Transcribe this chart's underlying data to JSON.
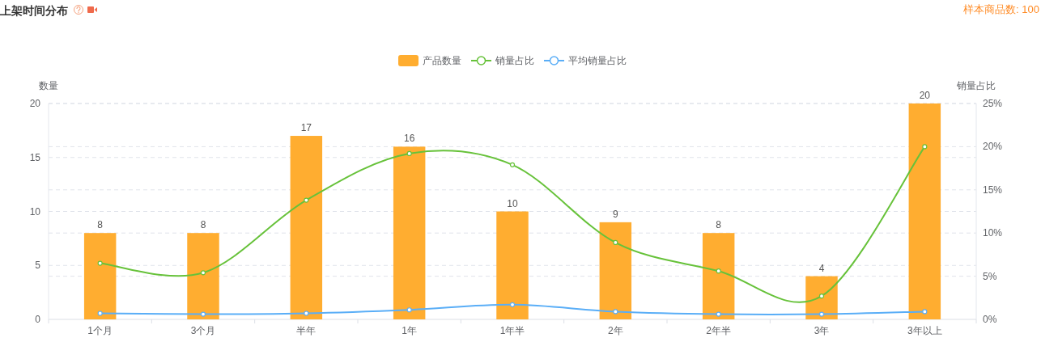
{
  "chart_data": {
    "type": "bar",
    "title": "上架时间分布",
    "annotations": [
      "样本商品数: 100"
    ],
    "ylabel": "数量",
    "y2label": "销量占比",
    "categories": [
      "1个月",
      "3个月",
      "半年",
      "1年",
      "1年半",
      "2年",
      "2年半",
      "3年",
      "3年以上"
    ],
    "series": [
      {
        "name": "产品数量",
        "color": "#ffad30",
        "values": [
          8,
          8,
          17,
          16,
          10,
          9,
          8,
          4,
          20
        ],
        "value_labels": [
          "8",
          "8",
          "17",
          "16",
          "10",
          "9",
          "8",
          "4",
          "20"
        ]
      },
      {
        "name": "销量占比",
        "type": "line",
        "axis": "y2",
        "color": "#67c23a",
        "values": [
          6.5,
          5.4,
          13.8,
          19.2,
          17.9,
          8.9,
          5.6,
          2.7,
          20.0
        ]
      },
      {
        "name": "平均销量占比",
        "type": "line",
        "axis": "y2",
        "color": "#5aaef7",
        "values": [
          0.7,
          0.6,
          0.7,
          1.1,
          1.7,
          0.9,
          0.6,
          0.6,
          0.9
        ]
      }
    ],
    "ylim": [
      0,
      20
    ],
    "yticks": [
      0,
      5,
      10,
      15,
      20
    ],
    "y2lim": [
      0,
      25
    ],
    "y2ticks": [
      {
        "value": 0,
        "label": "0%"
      },
      {
        "value": 5,
        "label": "5%"
      },
      {
        "value": 10,
        "label": "10%"
      },
      {
        "value": 15,
        "label": "15%"
      },
      {
        "value": 20,
        "label": "20%"
      },
      {
        "value": 25,
        "label": "25%"
      }
    ],
    "grid": "y",
    "legend": "top",
    "marker": "circle"
  }
}
